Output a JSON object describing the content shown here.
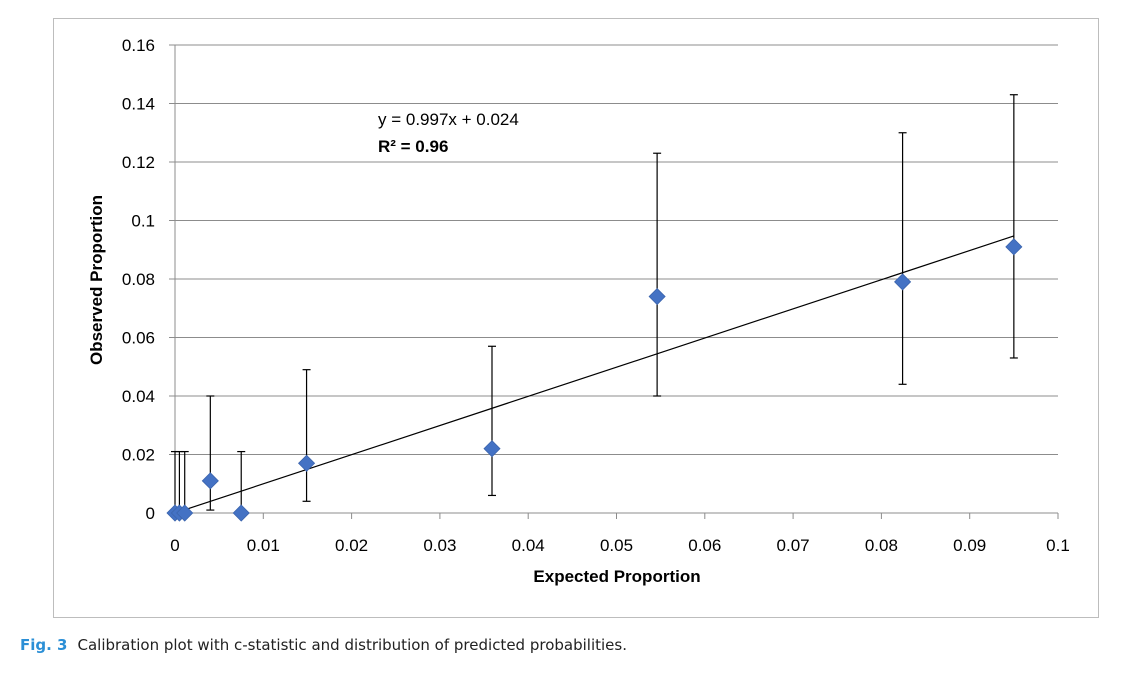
{
  "chart_data": {
    "type": "scatter",
    "xlabel": "Expected Proportion",
    "ylabel": "Observed Proportion",
    "xlim": [
      0,
      0.1
    ],
    "ylim": [
      0,
      0.16
    ],
    "x_ticks": [
      "0",
      "0.01",
      "0.02",
      "0.03",
      "0.04",
      "0.05",
      "0.06",
      "0.07",
      "0.08",
      "0.09",
      "0.1"
    ],
    "y_ticks": [
      "0",
      "0.02",
      "0.04",
      "0.06",
      "0.08",
      "0.1",
      "0.12",
      "0.14",
      "0.16"
    ],
    "grid": "horizontal",
    "marker": "diamond",
    "marker_color": "#4472C4",
    "points": [
      {
        "x": 0.0,
        "y": 0.0,
        "lo": 0.0,
        "hi": 0.021
      },
      {
        "x": 0.0005,
        "y": 0.0,
        "lo": 0.0,
        "hi": 0.021
      },
      {
        "x": 0.0011,
        "y": 0.0,
        "lo": 0.0,
        "hi": 0.021
      },
      {
        "x": 0.004,
        "y": 0.011,
        "lo": 0.001,
        "hi": 0.04
      },
      {
        "x": 0.0075,
        "y": 0.0,
        "lo": 0.0,
        "hi": 0.021
      },
      {
        "x": 0.0149,
        "y": 0.017,
        "lo": 0.004,
        "hi": 0.049
      },
      {
        "x": 0.0359,
        "y": 0.022,
        "lo": 0.006,
        "hi": 0.057
      },
      {
        "x": 0.0546,
        "y": 0.074,
        "lo": 0.04,
        "hi": 0.123
      },
      {
        "x": 0.0824,
        "y": 0.079,
        "lo": 0.044,
        "hi": 0.13
      },
      {
        "x": 0.095,
        "y": 0.091,
        "lo": 0.053,
        "hi": 0.143
      }
    ],
    "trendline": {
      "slope": 0.997,
      "intercept": 0.024,
      "x_range": [
        0,
        0.095
      ]
    },
    "equation": "y = 0.997x + 0.024",
    "r_squared": "R² = 0.96"
  },
  "caption": {
    "label": "Fig. 3",
    "text": "Calibration plot with c-statistic and distribution of predicted probabilities."
  }
}
